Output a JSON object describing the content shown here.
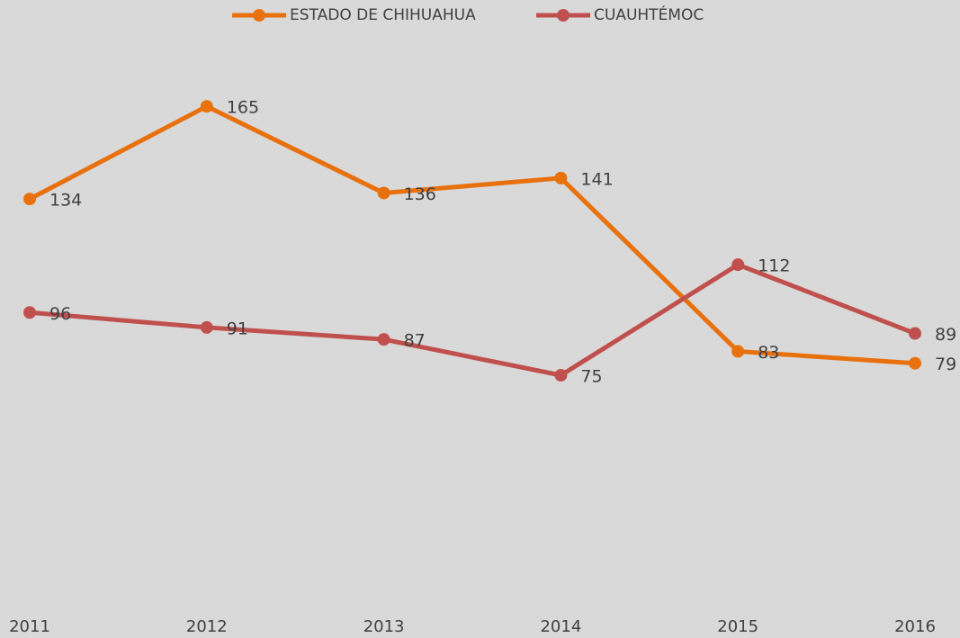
{
  "chart_data": {
    "type": "line",
    "categories": [
      "2011",
      "2012",
      "2013",
      "2014",
      "2015",
      "2016"
    ],
    "series": [
      {
        "name": "ESTADO DE CHIHUAHUA",
        "color": "#e8710e",
        "values": [
          134,
          165,
          136,
          141,
          83,
          79
        ]
      },
      {
        "name": "CUAUHTÉMOC",
        "color": "#c0504d",
        "values": [
          96,
          91,
          87,
          75,
          112,
          89
        ]
      }
    ],
    "ylim": [
      0,
      200
    ],
    "legend": "top"
  }
}
